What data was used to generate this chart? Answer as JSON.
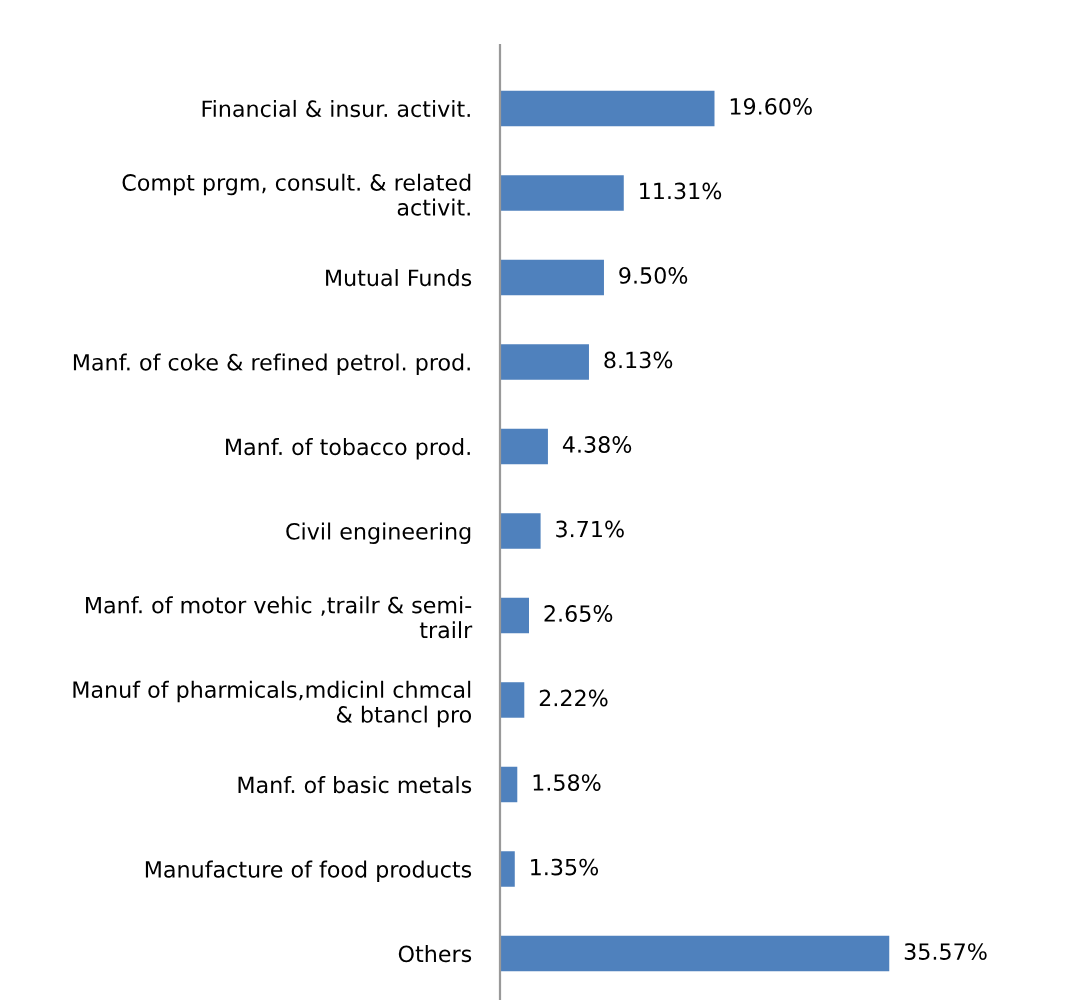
{
  "chart_data": {
    "type": "bar",
    "orientation": "horizontal",
    "categories": [
      "Financial & insur. activit.",
      "Compt prgm, consult. & related\nactivit.",
      "Mutual Funds",
      "Manf. of coke & refined petrol. prod.",
      "Manf. of tobacco prod.",
      "Civil engineering",
      "Manf. of motor vehic ,trailr & semi-\ntrailr",
      "Manuf of pharmicals,mdicinl chmcal\n& btancl pro",
      "Manf. of basic metals",
      "Manufacture of food products",
      "Others"
    ],
    "values": [
      19.6,
      11.31,
      9.5,
      8.13,
      4.38,
      3.71,
      2.65,
      2.22,
      1.58,
      1.35,
      35.57
    ],
    "value_labels": [
      "19.60%",
      "11.31%",
      "9.50%",
      "8.13%",
      "4.38%",
      "3.71%",
      "2.65%",
      "2.22%",
      "1.58%",
      "1.35%",
      "35.57%"
    ],
    "color": "#4f81bd",
    "grid": false
  }
}
